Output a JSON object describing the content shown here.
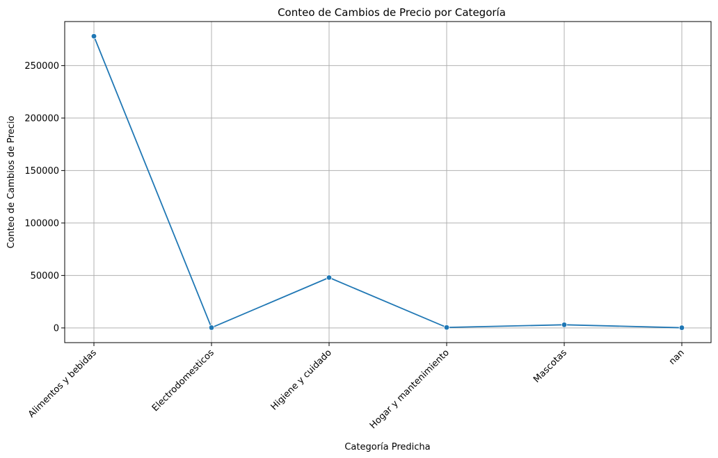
{
  "chart_data": {
    "type": "line",
    "title": "Conteo de Cambios de Precio por Categoría",
    "xlabel": "Categoría Predicha",
    "ylabel": "Conteo de Cambios de Precio",
    "categories": [
      "Alimentos y bebidas",
      "Electrodomesticos",
      "Higiene y cuidado",
      "Hogar y mantenimiento",
      "Mascotas",
      "nan"
    ],
    "series": [
      {
        "values": [
          278000,
          300,
          48000,
          500,
          3000,
          200
        ]
      }
    ],
    "yticks": [
      0,
      50000,
      100000,
      150000,
      200000,
      250000
    ],
    "ytick_labels": [
      "0",
      "50000",
      "100000",
      "150000",
      "200000",
      "250000"
    ],
    "ylim": [
      -14000,
      292000
    ],
    "grid": true,
    "marker": "circle",
    "line_color": "#1f77b4"
  }
}
